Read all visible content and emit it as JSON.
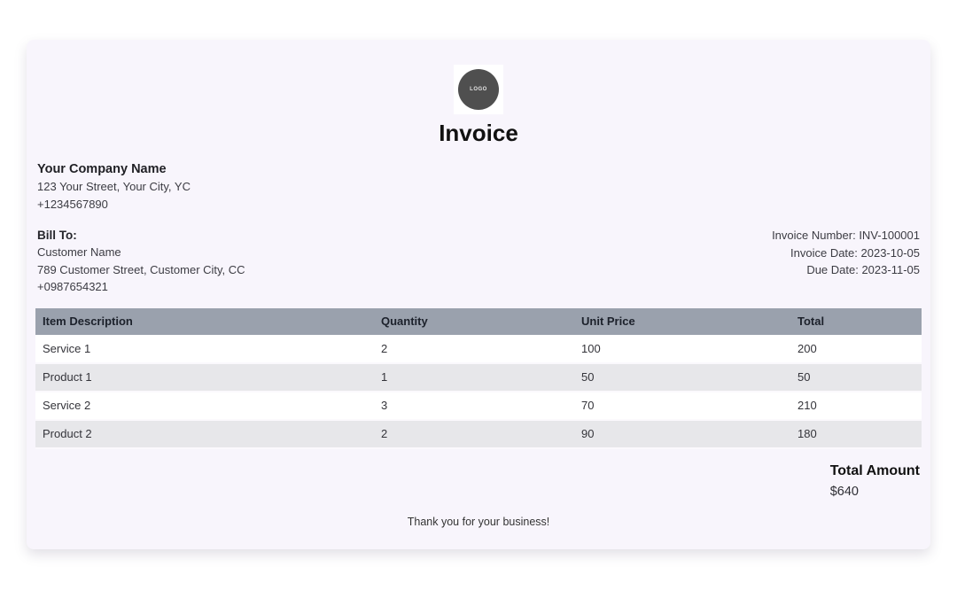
{
  "invoice": {
    "title": "Invoice",
    "logo_text": "LOGO",
    "company": {
      "name": "Your Company Name",
      "address": "123 Your Street, Your City, YC",
      "phone": "+1234567890"
    },
    "bill_to": {
      "label": "Bill To:",
      "name": "Customer Name",
      "address": "789 Customer Street, Customer City, CC",
      "phone": "+0987654321"
    },
    "meta": {
      "number": "Invoice Number: INV-100001",
      "date": "Invoice Date: 2023-10-05",
      "due": "Due Date: 2023-11-05"
    },
    "table": {
      "headers": [
        "Item Description",
        "Quantity",
        "Unit Price",
        "Total"
      ],
      "rows": [
        [
          "Service 1",
          "2",
          "100",
          "200"
        ],
        [
          "Product 1",
          "1",
          "50",
          "50"
        ],
        [
          "Service 2",
          "3",
          "70",
          "210"
        ],
        [
          "Product 2",
          "2",
          "90",
          "180"
        ]
      ]
    },
    "total": {
      "label": "Total Amount",
      "value": "$640"
    },
    "footer": "Thank you for your business!"
  },
  "colors": {
    "page_bg": "#ffffff",
    "card_bg": "#f8f5fc",
    "table_header_bg": "#9aa1ad",
    "row_bg": "#ffffff",
    "row_alt_bg": "#e7e7ea",
    "logo_circle": "#4f4f4f",
    "text": "#3c3c43",
    "heading_text": "#111111"
  }
}
